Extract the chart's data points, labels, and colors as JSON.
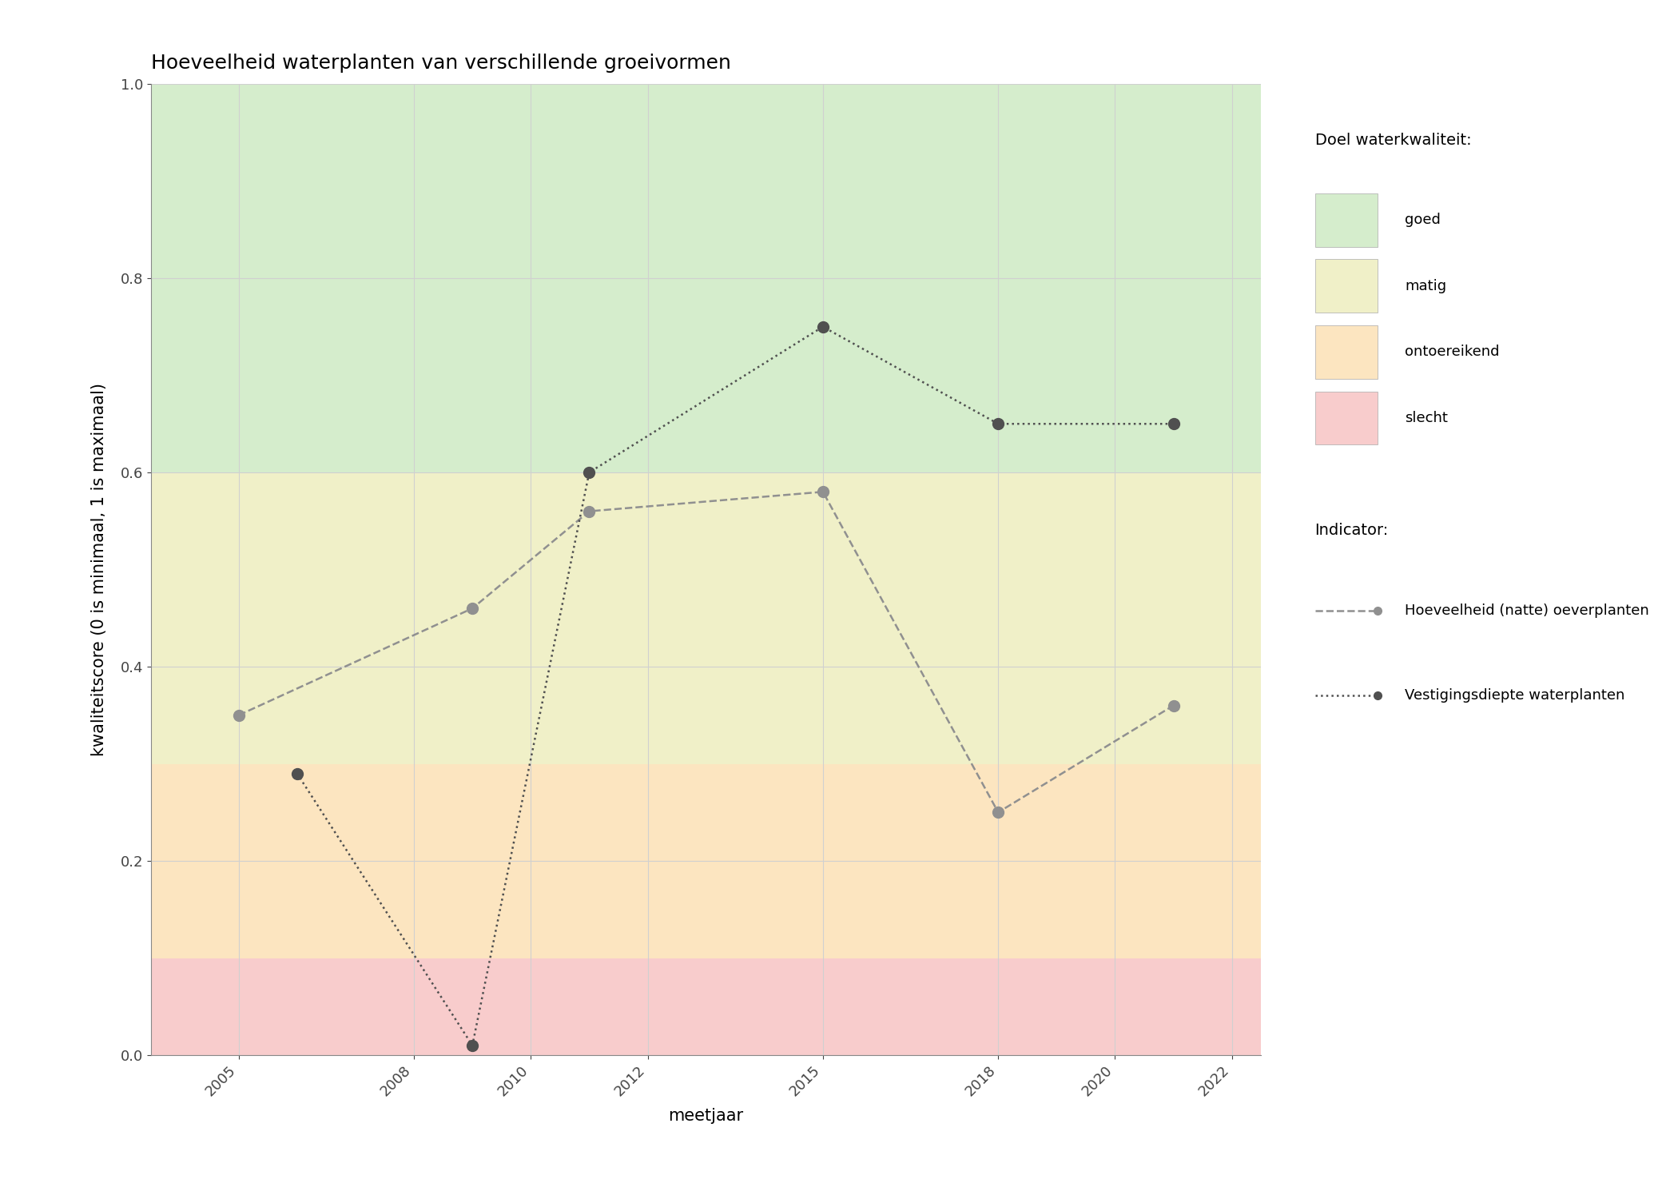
{
  "title": "Hoeveelheid waterplanten van verschillende groeivormen",
  "xlabel": "meetjaar",
  "ylabel": "kwaliteitscore (0 is minimaal, 1 is maximaal)",
  "xlim": [
    2003.5,
    2022.5
  ],
  "ylim": [
    0.0,
    1.0
  ],
  "xticks": [
    2005,
    2008,
    2010,
    2012,
    2015,
    2018,
    2020,
    2022
  ],
  "yticks": [
    0.0,
    0.2,
    0.4,
    0.6,
    0.8,
    1.0
  ],
  "bg_goed": {
    "ymin": 0.6,
    "ymax": 1.0,
    "color": "#d5edcc"
  },
  "bg_matig": {
    "ymin": 0.3,
    "ymax": 0.6,
    "color": "#f0f0c8"
  },
  "bg_ontoereikend": {
    "ymin": 0.1,
    "ymax": 0.3,
    "color": "#fce5c0"
  },
  "bg_slecht": {
    "ymin": 0.0,
    "ymax": 0.1,
    "color": "#f8cccc"
  },
  "series1": {
    "label": "Hoeveelheid (natte) oeverplanten",
    "x": [
      2005,
      2009,
      2011,
      2015,
      2018,
      2021
    ],
    "y": [
      0.35,
      0.46,
      0.56,
      0.58,
      0.25,
      0.36
    ],
    "color": "#909090",
    "linestyle": "dashed",
    "marker": "o",
    "markersize": 10,
    "linewidth": 1.8
  },
  "series2": {
    "label": "Vestigingsdiepte waterplanten",
    "x": [
      2006,
      2009,
      2011,
      2015,
      2018,
      2021
    ],
    "y": [
      0.29,
      0.01,
      0.6,
      0.75,
      0.65,
      0.65
    ],
    "color": "#505050",
    "linestyle": "dotted",
    "marker": "o",
    "markersize": 10,
    "linewidth": 1.8
  },
  "legend_quality_labels": [
    "goed",
    "matig",
    "ontoereikend",
    "slecht"
  ],
  "legend_quality_colors": [
    "#d5edcc",
    "#f0f0c8",
    "#fce5c0",
    "#f8cccc"
  ],
  "grid_color": "#d0d0d0",
  "background_color": "#ffffff",
  "title_fontsize": 18,
  "label_fontsize": 15,
  "tick_fontsize": 13,
  "legend_fontsize": 13
}
